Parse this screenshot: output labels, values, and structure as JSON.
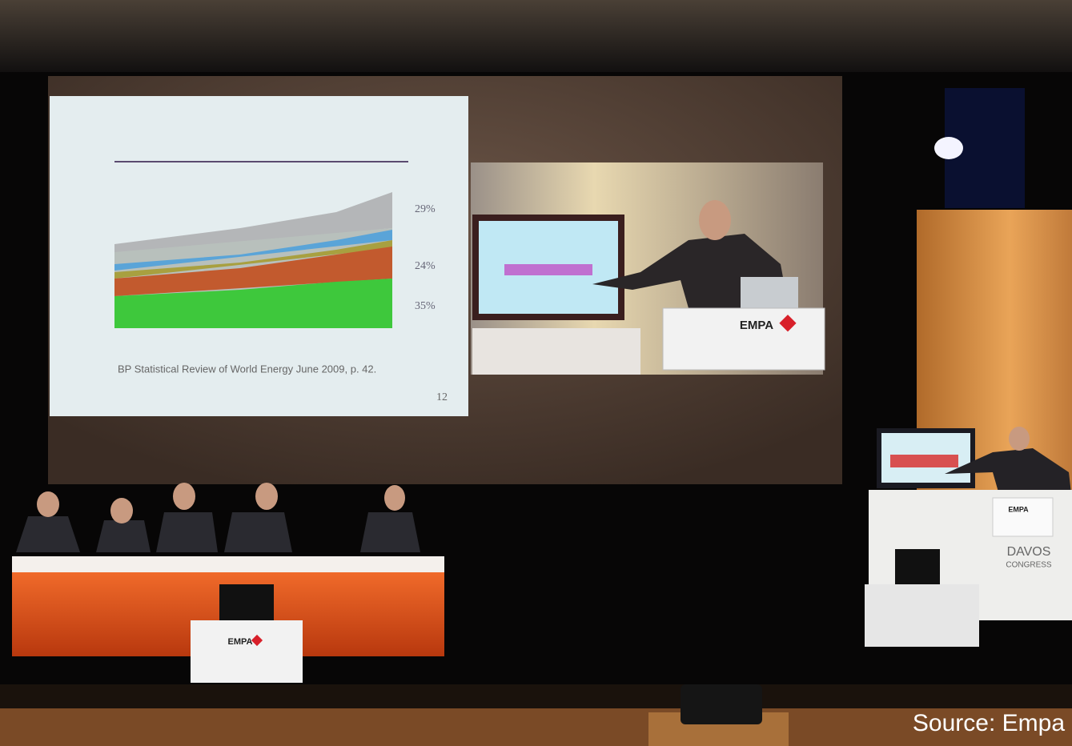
{
  "slide": {
    "labels": [
      "29%",
      "24%",
      "35%"
    ],
    "citation": "BP Statistical Review of World Energy June 2009, p. 42.",
    "page_number": "12"
  },
  "logos": {
    "screen_podium": "EMPA",
    "stage_podium": "EMPA",
    "front_table": "EMPA",
    "venue_line1": "DAVOS",
    "venue_line2": "CONGRESS"
  },
  "caption": "Source: Empa"
}
